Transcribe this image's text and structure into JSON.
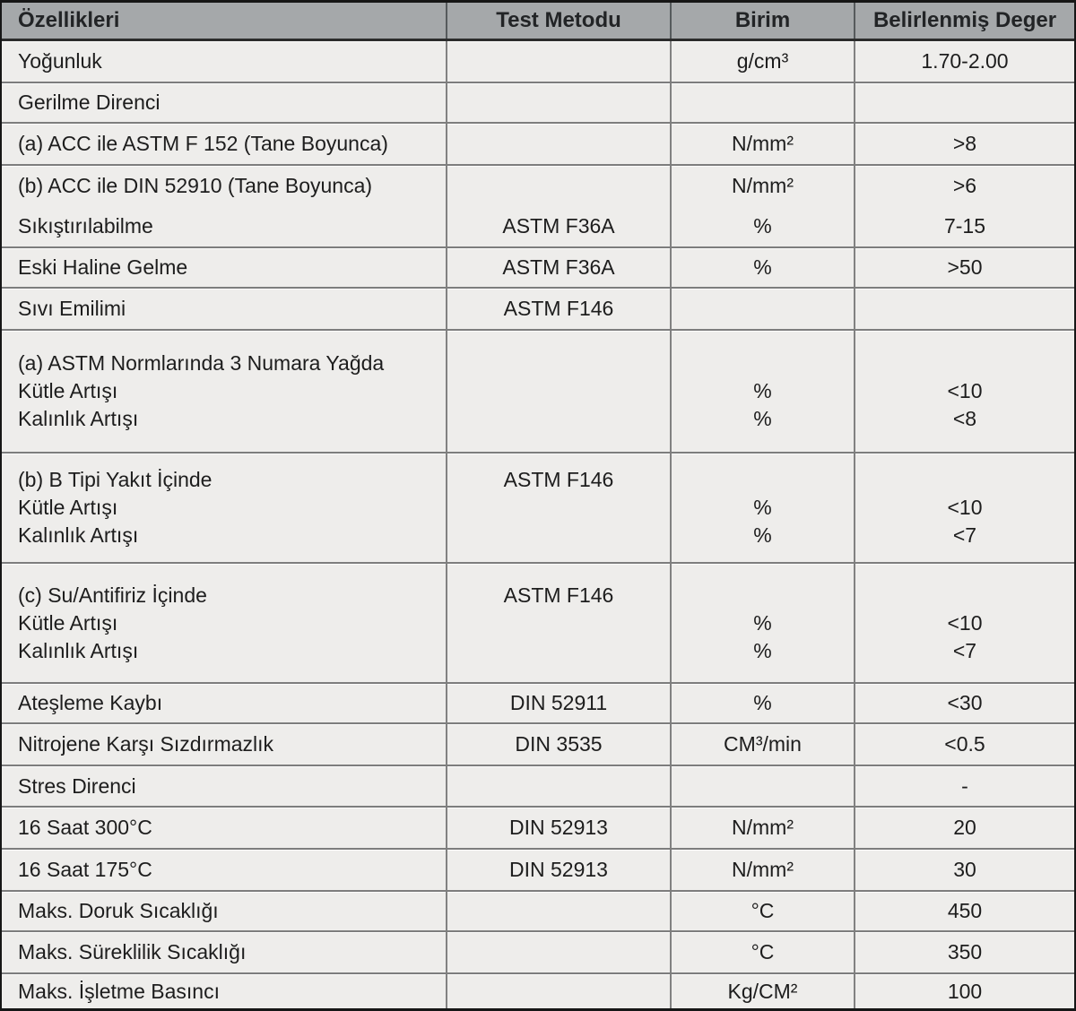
{
  "colors": {
    "header_bg": "#a5a8aa",
    "row_bg": "#eeedeb",
    "outer_border": "#161616",
    "inner_border": "#7d7d7d"
  },
  "table": {
    "headers": [
      "Özellikleri",
      "Test Metodu",
      "Birim",
      "Belirlenmiş Deger"
    ],
    "rows": [
      {
        "property": [
          "Yoğunluk"
        ],
        "method": [
          ""
        ],
        "unit": [
          "g/cm³"
        ],
        "value": [
          "1.70-2.00"
        ]
      },
      {
        "property": [
          "Gerilme Direnci"
        ],
        "method": [
          ""
        ],
        "unit": [
          ""
        ],
        "value": [
          ""
        ]
      },
      {
        "property": [
          "(a) ACC ile ASTM F 152 (Tane Boyunca)"
        ],
        "method": [
          ""
        ],
        "unit": [
          "N/mm²"
        ],
        "value": [
          ">8"
        ]
      },
      {
        "property": [
          "(b) ACC ile DIN 52910 (Tane Boyunca)",
          "Sıkıştırılabilme"
        ],
        "method": [
          "",
          "ASTM F36A"
        ],
        "unit": [
          "N/mm²",
          "%"
        ],
        "value": [
          ">6",
          "7-15"
        ]
      },
      {
        "property": [
          "Eski Haline Gelme"
        ],
        "method": [
          "ASTM F36A"
        ],
        "unit": [
          "%"
        ],
        "value": [
          ">50"
        ]
      },
      {
        "property": [
          "Sıvı Emilimi"
        ],
        "method": [
          "ASTM F146"
        ],
        "unit": [
          ""
        ],
        "value": [
          ""
        ]
      },
      {
        "property": [
          "(a) ASTM Normlarında 3 Numara Yağda",
          "Kütle Artışı",
          "Kalınlık Artışı"
        ],
        "method": [
          "",
          "",
          ""
        ],
        "unit": [
          "",
          "%",
          "%"
        ],
        "value": [
          "",
          "<10",
          "<8"
        ]
      },
      {
        "property": [
          "(b) B Tipi Yakıt İçinde",
          "Kütle Artışı",
          "Kalınlık Artışı"
        ],
        "method": [
          "ASTM F146",
          "",
          ""
        ],
        "unit": [
          "",
          "%",
          "%"
        ],
        "value": [
          "",
          "<10",
          "<7"
        ]
      },
      {
        "property": [
          "(c) Su/Antifiriz İçinde",
          "Kütle Artışı",
          "Kalınlık Artışı"
        ],
        "method": [
          "ASTM F146",
          "",
          ""
        ],
        "unit": [
          "",
          "%",
          "%"
        ],
        "value": [
          "",
          "<10",
          "<7"
        ]
      },
      {
        "property": [
          "Ateşleme Kaybı"
        ],
        "method": [
          "DIN 52911"
        ],
        "unit": [
          "%"
        ],
        "value": [
          "<30"
        ]
      },
      {
        "property": [
          "Nitrojene Karşı Sızdırmazlık"
        ],
        "method": [
          "DIN 3535"
        ],
        "unit": [
          "CM³/min"
        ],
        "value": [
          "<0.5"
        ]
      },
      {
        "property": [
          "Stres Direnci"
        ],
        "method": [
          ""
        ],
        "unit": [
          ""
        ],
        "value": [
          "-"
        ]
      },
      {
        "property": [
          "16 Saat 300°C"
        ],
        "method": [
          "DIN 52913"
        ],
        "unit": [
          "N/mm²"
        ],
        "value": [
          "20"
        ]
      },
      {
        "property": [
          "16 Saat 175°C"
        ],
        "method": [
          "DIN 52913"
        ],
        "unit": [
          "N/mm²"
        ],
        "value": [
          "30"
        ]
      },
      {
        "property": [
          "Maks. Doruk Sıcaklığı"
        ],
        "method": [
          ""
        ],
        "unit": [
          "°C"
        ],
        "value": [
          "450"
        ]
      },
      {
        "property": [
          "Maks. Süreklilik Sıcaklığı"
        ],
        "method": [
          ""
        ],
        "unit": [
          "°C"
        ],
        "value": [
          "350"
        ]
      },
      {
        "property": [
          "Maks. İşletme Basıncı"
        ],
        "method": [
          ""
        ],
        "unit": [
          "Kg/CM²"
        ],
        "value": [
          "100"
        ]
      }
    ]
  }
}
